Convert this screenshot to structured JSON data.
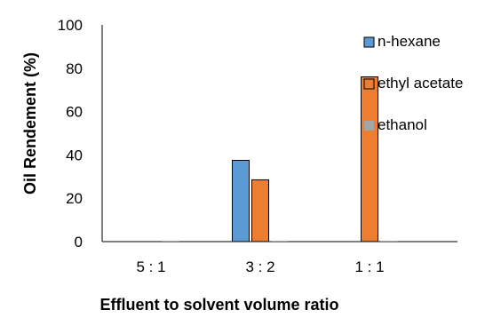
{
  "chart_data": {
    "type": "bar",
    "title": "",
    "xlabel": "Effluent to solvent volume ratio",
    "ylabel": "Oil Rendement  (%)",
    "categories": [
      "5 : 1",
      "3 : 2",
      "1 : 1"
    ],
    "ylim": [
      0,
      100
    ],
    "yticks": [
      0,
      20,
      40,
      60,
      80,
      100
    ],
    "grid": false,
    "legend_position": "right",
    "series": [
      {
        "name": "n-hexane",
        "color": "#5b9bd5",
        "values": [
          0,
          37.5,
          0
        ]
      },
      {
        "name": "ethyl acetate",
        "color": "#ed7d31",
        "values": [
          0,
          28.5,
          76
        ]
      },
      {
        "name": "ethanol",
        "color": "#a5a5a5",
        "values": [
          0.4,
          0.4,
          0.4
        ]
      }
    ]
  }
}
